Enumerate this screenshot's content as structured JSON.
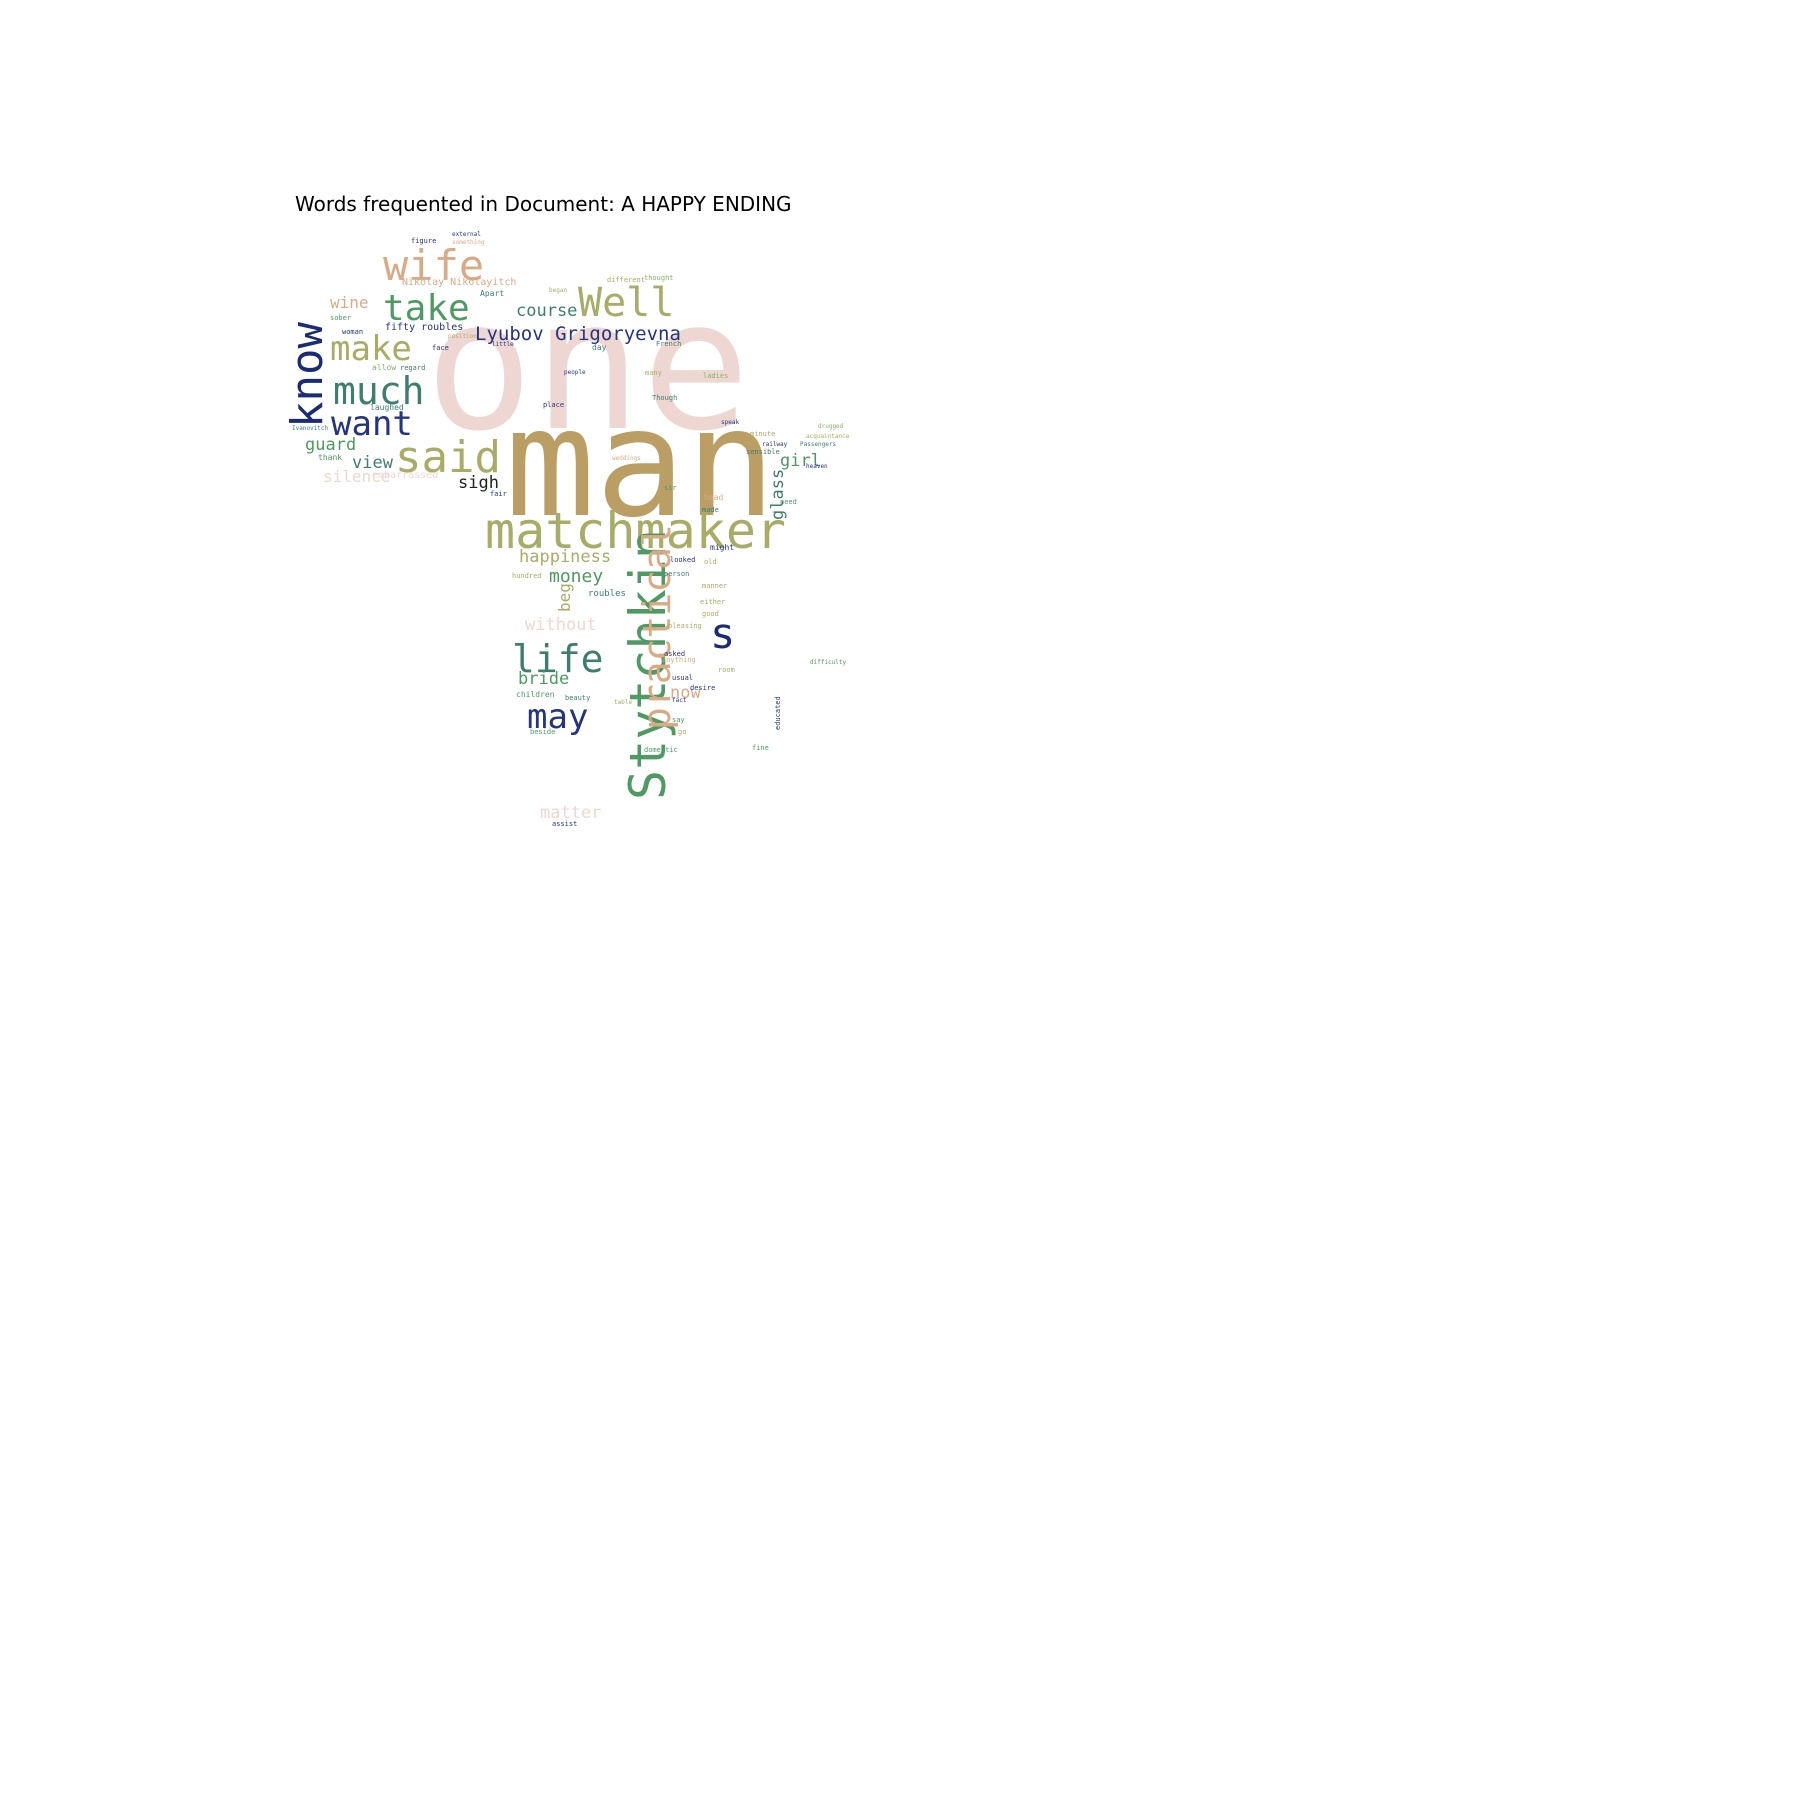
{
  "title": "Words frequented in Document: A HAPPY ENDING",
  "palette": {
    "pink": "#eed7d2",
    "tan": "#bb9e64",
    "khaki": "#a8ac66",
    "peach": "#d9aa86",
    "green": "#4e9a62",
    "teal": "#3f7d6e",
    "navy": "#25347f",
    "darkblue": "#1b2b74",
    "sage": "#88b06a",
    "black": "#222222"
  },
  "words": [
    {
      "text": "one",
      "color": "pink"
    },
    {
      "text": "man",
      "color": "tan"
    },
    {
      "text": "matchmaker",
      "color": "khaki"
    },
    {
      "text": "Stytchkin",
      "color": "green"
    },
    {
      "text": "practical",
      "color": "peach"
    },
    {
      "text": "said",
      "color": "khaki"
    },
    {
      "text": "know",
      "color": "darkblue"
    },
    {
      "text": "wife",
      "color": "peach"
    },
    {
      "text": "Well",
      "color": "khaki"
    },
    {
      "text": "take",
      "color": "green"
    },
    {
      "text": "make",
      "color": "khaki"
    },
    {
      "text": "much",
      "color": "teal"
    },
    {
      "text": "want",
      "color": "navy"
    },
    {
      "text": "life",
      "color": "teal"
    },
    {
      "text": "may",
      "color": "navy"
    },
    {
      "text": "s",
      "color": "darkblue"
    },
    {
      "text": "Lyubov Grigoryevna",
      "color": "navy"
    },
    {
      "text": "course",
      "color": "teal"
    },
    {
      "text": "happiness",
      "color": "khaki"
    },
    {
      "text": "money",
      "color": "green"
    },
    {
      "text": "glass",
      "color": "teal"
    },
    {
      "text": "girl",
      "color": "green"
    },
    {
      "text": "guard",
      "color": "green"
    },
    {
      "text": "view",
      "color": "teal"
    },
    {
      "text": "silence",
      "color": "pink"
    },
    {
      "text": "sigh",
      "color": "black"
    },
    {
      "text": "wine",
      "color": "peach"
    },
    {
      "text": "without",
      "color": "pink"
    },
    {
      "text": "bride",
      "color": "green"
    },
    {
      "text": "beg",
      "color": "khaki"
    },
    {
      "text": "now",
      "color": "peach"
    },
    {
      "text": "matter",
      "color": "pink"
    },
    {
      "text": "fifty roubles",
      "color": "navy"
    },
    {
      "text": "Nikolay Nikolayitch",
      "color": "peach"
    },
    {
      "text": "embarrassed",
      "color": "pink"
    },
    {
      "text": "roubles",
      "color": "teal"
    },
    {
      "text": "children",
      "color": "green"
    },
    {
      "text": "Apart",
      "color": "teal"
    },
    {
      "text": "woman",
      "color": "navy"
    },
    {
      "text": "allow",
      "color": "sage"
    },
    {
      "text": "laughed",
      "color": "teal"
    },
    {
      "text": "thank",
      "color": "green"
    },
    {
      "text": "sober",
      "color": "green"
    },
    {
      "text": "face",
      "color": "navy"
    },
    {
      "text": "day",
      "color": "teal"
    },
    {
      "text": "French",
      "color": "teal"
    },
    {
      "text": "little",
      "color": "navy"
    },
    {
      "text": "people",
      "color": "navy"
    },
    {
      "text": "place",
      "color": "navy"
    },
    {
      "text": "many",
      "color": "khaki"
    },
    {
      "text": "ladies",
      "color": "sage"
    },
    {
      "text": "Though",
      "color": "teal"
    },
    {
      "text": "speak",
      "color": "navy"
    },
    {
      "text": "sensible",
      "color": "teal"
    },
    {
      "text": "head",
      "color": "peach"
    },
    {
      "text": "dear",
      "color": "khaki"
    },
    {
      "text": "weddings",
      "color": "peach"
    },
    {
      "text": "might",
      "color": "navy"
    },
    {
      "text": "old",
      "color": "khaki"
    },
    {
      "text": "looked",
      "color": "navy"
    },
    {
      "text": "person",
      "color": "teal"
    },
    {
      "text": "manner",
      "color": "khaki"
    },
    {
      "text": "either",
      "color": "khaki"
    },
    {
      "text": "good",
      "color": "khaki"
    },
    {
      "text": "pleasing",
      "color": "khaki"
    },
    {
      "text": "asked",
      "color": "navy"
    },
    {
      "text": "usual",
      "color": "navy"
    },
    {
      "text": "desire",
      "color": "navy"
    },
    {
      "text": "room",
      "color": "khaki"
    },
    {
      "text": "anything",
      "color": "peach"
    },
    {
      "text": "say",
      "color": "green"
    },
    {
      "text": "domestic",
      "color": "green"
    },
    {
      "text": "beauty",
      "color": "teal"
    },
    {
      "text": "beside",
      "color": "green"
    },
    {
      "text": "assist",
      "color": "navy"
    },
    {
      "text": "hundred",
      "color": "khaki"
    },
    {
      "text": "external",
      "color": "navy"
    },
    {
      "text": "figure",
      "color": "navy"
    },
    {
      "text": "something",
      "color": "peach"
    },
    {
      "text": "different",
      "color": "khaki"
    },
    {
      "text": "thought",
      "color": "sage"
    },
    {
      "text": "began",
      "color": "khaki"
    },
    {
      "text": "position",
      "color": "khaki"
    },
    {
      "text": "Ivanovitch",
      "color": "teal"
    },
    {
      "text": "regard",
      "color": "teal"
    },
    {
      "text": "fine",
      "color": "green"
    },
    {
      "text": "need",
      "color": "green"
    },
    {
      "text": "educated",
      "color": "navy"
    },
    {
      "text": "difficulty",
      "color": "green"
    },
    {
      "text": "acquaintance",
      "color": "khaki"
    },
    {
      "text": "Passengers",
      "color": "teal"
    },
    {
      "text": "railway",
      "color": "navy"
    },
    {
      "text": "minute",
      "color": "khaki"
    },
    {
      "text": "heaven",
      "color": "navy"
    },
    {
      "text": "drugged",
      "color": "sage"
    },
    {
      "text": "sir",
      "color": "green"
    },
    {
      "text": "fair",
      "color": "navy"
    },
    {
      "text": "made",
      "color": "teal"
    },
    {
      "text": "table",
      "color": "khaki"
    },
    {
      "text": "go",
      "color": "khaki"
    },
    {
      "text": "fact",
      "color": "navy"
    }
  ]
}
